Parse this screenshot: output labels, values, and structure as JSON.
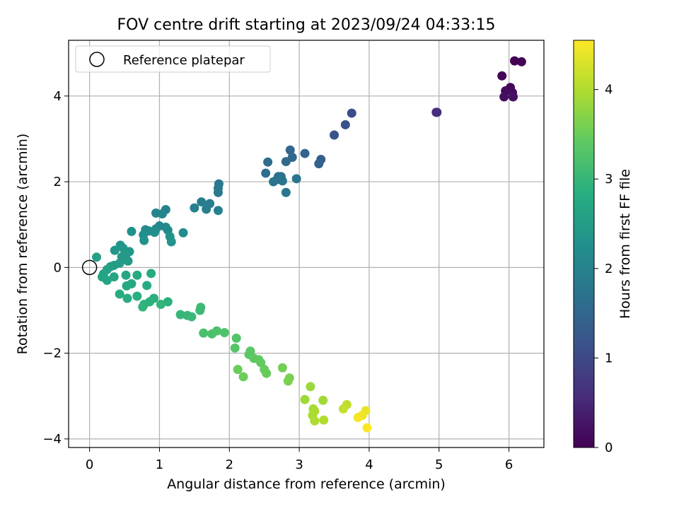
{
  "chart_data": {
    "type": "scatter",
    "title": "FOV centre drift starting at 2023/09/24 04:33:15",
    "xlabel": "Angular distance from reference (arcmin)",
    "ylabel": "Rotation from reference (arcmin)",
    "xlim": [
      -0.3,
      6.5
    ],
    "ylim": [
      -4.2,
      5.3
    ],
    "xticks": [
      "0",
      "1",
      "2",
      "3",
      "4",
      "5",
      "6"
    ],
    "yticks": [
      "−4",
      "−2",
      "0",
      "2",
      "4"
    ],
    "grid": true,
    "colormap": "viridis",
    "colorbar": {
      "label": "Hours from first FF file",
      "range": [
        0,
        4.55
      ],
      "ticks": [
        "0",
        "1",
        "2",
        "3",
        "4"
      ]
    },
    "legend": {
      "position": "top-left",
      "entries": [
        "Reference platepar"
      ]
    },
    "reference_point": {
      "x": 0,
      "y": 0
    },
    "points": [
      {
        "x": 6.08,
        "y": 4.82,
        "h": 0.0
      },
      {
        "x": 6.18,
        "y": 4.8,
        "h": 0.03
      },
      {
        "x": 5.9,
        "y": 4.47,
        "h": 0.07
      },
      {
        "x": 6.02,
        "y": 4.2,
        "h": 0.1
      },
      {
        "x": 5.95,
        "y": 4.12,
        "h": 0.13
      },
      {
        "x": 6.05,
        "y": 4.08,
        "h": 0.16
      },
      {
        "x": 5.93,
        "y": 3.98,
        "h": 0.18
      },
      {
        "x": 6.06,
        "y": 3.98,
        "h": 0.21
      },
      {
        "x": 4.96,
        "y": 3.62,
        "h": 0.55
      },
      {
        "x": 4.97,
        "y": 3.62,
        "h": 0.58
      },
      {
        "x": 3.75,
        "y": 3.6,
        "h": 1.08
      },
      {
        "x": 3.66,
        "y": 3.33,
        "h": 1.12
      },
      {
        "x": 3.5,
        "y": 3.09,
        "h": 1.18
      },
      {
        "x": 3.31,
        "y": 2.52,
        "h": 1.35
      },
      {
        "x": 3.28,
        "y": 2.42,
        "h": 1.4
      },
      {
        "x": 3.08,
        "y": 2.66,
        "h": 1.44
      },
      {
        "x": 2.87,
        "y": 2.74,
        "h": 1.5
      },
      {
        "x": 2.9,
        "y": 2.57,
        "h": 1.53
      },
      {
        "x": 2.81,
        "y": 2.47,
        "h": 1.56
      },
      {
        "x": 2.55,
        "y": 2.46,
        "h": 1.6
      },
      {
        "x": 2.52,
        "y": 2.2,
        "h": 1.63
      },
      {
        "x": 2.7,
        "y": 2.12,
        "h": 1.66
      },
      {
        "x": 2.74,
        "y": 2.12,
        "h": 1.68
      },
      {
        "x": 2.68,
        "y": 2.05,
        "h": 1.7
      },
      {
        "x": 2.63,
        "y": 2.0,
        "h": 1.72
      },
      {
        "x": 2.76,
        "y": 2.02,
        "h": 1.74
      },
      {
        "x": 2.96,
        "y": 2.07,
        "h": 1.76
      },
      {
        "x": 2.81,
        "y": 1.75,
        "h": 1.78
      },
      {
        "x": 1.85,
        "y": 1.95,
        "h": 1.82
      },
      {
        "x": 1.84,
        "y": 1.85,
        "h": 1.84
      },
      {
        "x": 1.84,
        "y": 1.75,
        "h": 1.86
      },
      {
        "x": 1.6,
        "y": 1.53,
        "h": 1.9
      },
      {
        "x": 1.72,
        "y": 1.49,
        "h": 1.92
      },
      {
        "x": 1.67,
        "y": 1.36,
        "h": 1.94
      },
      {
        "x": 1.5,
        "y": 1.39,
        "h": 1.96
      },
      {
        "x": 1.84,
        "y": 1.33,
        "h": 1.98
      },
      {
        "x": 1.09,
        "y": 1.35,
        "h": 2.02
      },
      {
        "x": 0.95,
        "y": 1.27,
        "h": 2.04
      },
      {
        "x": 1.04,
        "y": 1.25,
        "h": 2.06
      },
      {
        "x": 1.0,
        "y": 0.97,
        "h": 2.09
      },
      {
        "x": 1.09,
        "y": 0.94,
        "h": 2.11
      },
      {
        "x": 0.95,
        "y": 0.9,
        "h": 2.13
      },
      {
        "x": 1.12,
        "y": 0.87,
        "h": 2.15
      },
      {
        "x": 1.34,
        "y": 0.81,
        "h": 2.17
      },
      {
        "x": 0.8,
        "y": 0.88,
        "h": 2.19
      },
      {
        "x": 0.85,
        "y": 0.85,
        "h": 2.21
      },
      {
        "x": 0.93,
        "y": 0.82,
        "h": 2.23
      },
      {
        "x": 0.77,
        "y": 0.76,
        "h": 2.25
      },
      {
        "x": 0.6,
        "y": 0.84,
        "h": 2.27
      },
      {
        "x": 1.15,
        "y": 0.72,
        "h": 2.29
      },
      {
        "x": 0.78,
        "y": 0.63,
        "h": 2.31
      },
      {
        "x": 1.17,
        "y": 0.6,
        "h": 2.33
      },
      {
        "x": 0.44,
        "y": 0.52,
        "h": 2.36
      },
      {
        "x": 0.36,
        "y": 0.4,
        "h": 2.38
      },
      {
        "x": 0.48,
        "y": 0.45,
        "h": 2.4
      },
      {
        "x": 0.57,
        "y": 0.37,
        "h": 2.42
      },
      {
        "x": 0.52,
        "y": 0.3,
        "h": 2.44
      },
      {
        "x": 0.46,
        "y": 0.25,
        "h": 2.46
      },
      {
        "x": 0.55,
        "y": 0.15,
        "h": 2.48
      },
      {
        "x": 0.43,
        "y": 0.1,
        "h": 2.5
      },
      {
        "x": 0.35,
        "y": 0.05,
        "h": 2.52
      },
      {
        "x": 0.3,
        "y": 0.02,
        "h": 2.54
      },
      {
        "x": 0.1,
        "y": 0.24,
        "h": 2.56
      },
      {
        "x": 0.25,
        "y": -0.05,
        "h": 2.58
      },
      {
        "x": 0.2,
        "y": -0.15,
        "h": 2.6
      },
      {
        "x": 0.18,
        "y": -0.22,
        "h": 2.62
      },
      {
        "x": 0.25,
        "y": -0.3,
        "h": 2.64
      },
      {
        "x": 0.35,
        "y": -0.22,
        "h": 2.66
      },
      {
        "x": 0.52,
        "y": -0.18,
        "h": 2.68
      },
      {
        "x": 0.6,
        "y": -0.38,
        "h": 2.7
      },
      {
        "x": 0.53,
        "y": -0.43,
        "h": 2.72
      },
      {
        "x": 0.68,
        "y": -0.18,
        "h": 2.74
      },
      {
        "x": 0.82,
        "y": -0.42,
        "h": 2.76
      },
      {
        "x": 0.88,
        "y": -0.14,
        "h": 2.78
      },
      {
        "x": 0.43,
        "y": -0.62,
        "h": 2.8
      },
      {
        "x": 0.54,
        "y": -0.72,
        "h": 2.82
      },
      {
        "x": 0.68,
        "y": -0.67,
        "h": 2.84
      },
      {
        "x": 0.92,
        "y": -0.72,
        "h": 2.86
      },
      {
        "x": 1.12,
        "y": -0.8,
        "h": 2.88
      },
      {
        "x": 0.86,
        "y": -0.8,
        "h": 2.9
      },
      {
        "x": 0.78,
        "y": -0.86,
        "h": 2.92
      },
      {
        "x": 0.76,
        "y": -0.92,
        "h": 2.94
      },
      {
        "x": 1.02,
        "y": -0.86,
        "h": 2.96
      },
      {
        "x": 1.3,
        "y": -1.1,
        "h": 3.0
      },
      {
        "x": 1.4,
        "y": -1.12,
        "h": 3.02
      },
      {
        "x": 1.46,
        "y": -1.15,
        "h": 3.04
      },
      {
        "x": 1.58,
        "y": -1.0,
        "h": 3.06
      },
      {
        "x": 1.59,
        "y": -0.93,
        "h": 3.08
      },
      {
        "x": 1.63,
        "y": -1.53,
        "h": 3.2
      },
      {
        "x": 1.75,
        "y": -1.55,
        "h": 3.22
      },
      {
        "x": 1.82,
        "y": -1.48,
        "h": 3.24
      },
      {
        "x": 1.93,
        "y": -1.52,
        "h": 3.26
      },
      {
        "x": 2.1,
        "y": -1.65,
        "h": 3.3
      },
      {
        "x": 2.08,
        "y": -1.88,
        "h": 3.32
      },
      {
        "x": 2.3,
        "y": -1.95,
        "h": 3.36
      },
      {
        "x": 2.28,
        "y": -2.03,
        "h": 3.38
      },
      {
        "x": 2.35,
        "y": -2.12,
        "h": 3.4
      },
      {
        "x": 2.42,
        "y": -2.15,
        "h": 3.42
      },
      {
        "x": 2.45,
        "y": -2.22,
        "h": 3.44
      },
      {
        "x": 2.5,
        "y": -2.38,
        "h": 3.46
      },
      {
        "x": 2.53,
        "y": -2.47,
        "h": 3.48
      },
      {
        "x": 2.12,
        "y": -2.38,
        "h": 3.5
      },
      {
        "x": 2.2,
        "y": -2.55,
        "h": 3.52
      },
      {
        "x": 2.76,
        "y": -2.34,
        "h": 3.56
      },
      {
        "x": 2.86,
        "y": -2.58,
        "h": 3.6
      },
      {
        "x": 2.84,
        "y": -2.65,
        "h": 3.62
      },
      {
        "x": 3.16,
        "y": -2.78,
        "h": 3.85
      },
      {
        "x": 3.08,
        "y": -3.08,
        "h": 3.88
      },
      {
        "x": 3.34,
        "y": -3.1,
        "h": 3.9
      },
      {
        "x": 3.2,
        "y": -3.3,
        "h": 3.93
      },
      {
        "x": 3.22,
        "y": -3.35,
        "h": 3.95
      },
      {
        "x": 3.19,
        "y": -3.45,
        "h": 3.97
      },
      {
        "x": 3.22,
        "y": -3.58,
        "h": 3.99
      },
      {
        "x": 3.35,
        "y": -3.56,
        "h": 4.01
      },
      {
        "x": 3.68,
        "y": -3.2,
        "h": 4.1
      },
      {
        "x": 3.63,
        "y": -3.3,
        "h": 4.15
      },
      {
        "x": 3.95,
        "y": -3.34,
        "h": 4.4
      },
      {
        "x": 3.9,
        "y": -3.45,
        "h": 4.45
      },
      {
        "x": 3.84,
        "y": -3.5,
        "h": 4.48
      },
      {
        "x": 3.97,
        "y": -3.74,
        "h": 4.55
      }
    ]
  }
}
